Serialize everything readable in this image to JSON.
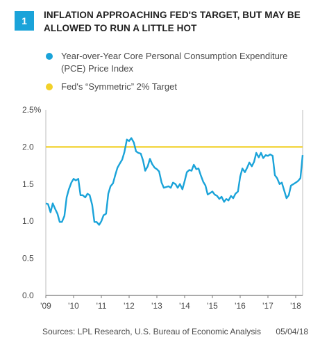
{
  "header": {
    "number": "1",
    "title": "INFLATION APPROACHING FED'S TARGET, BUT MAY BE ALLOWED TO RUN A LITTLE HOT"
  },
  "colors": {
    "accent": "#1aa3d9",
    "series": "#1aa3d9",
    "target": "#f2d12a",
    "axis": "#777777"
  },
  "legend": [
    {
      "label": "Year-over-Year Core Personal Consumption Expenditure (PCE) Price Index",
      "color": "#1aa3d9"
    },
    {
      "label": "Fed's “Symmetric” 2% Target",
      "color": "#f2d12a"
    }
  ],
  "footer": {
    "sources": "Sources: LPL Research, U.S. Bureau of Economic Analysis",
    "date": "05/04/18"
  },
  "chart_data": {
    "type": "line",
    "title": "",
    "xlabel": "",
    "ylabel": "",
    "ylim": [
      0,
      2.5
    ],
    "xlim": [
      2009.0,
      2018.25
    ],
    "y_ticks": [
      "0.0",
      "0.5",
      "1.0",
      "1.5",
      "2.0",
      "2.5%"
    ],
    "x_ticks": [
      "'09",
      "'10",
      "'11",
      "'12",
      "'13",
      "'14",
      "'15",
      "'16",
      "'17",
      "'18"
    ],
    "grid": false,
    "legend_position": "top",
    "reference_line": {
      "name": "Fed's “Symmetric” 2% Target",
      "y": 2.0
    },
    "series": [
      {
        "name": "Year-over-Year Core Personal Consumption Expenditure (PCE) Price Index",
        "x": [
          2009.0,
          2009.08,
          2009.17,
          2009.25,
          2009.33,
          2009.42,
          2009.5,
          2009.58,
          2009.67,
          2009.75,
          2009.83,
          2009.92,
          2010.0,
          2010.08,
          2010.17,
          2010.25,
          2010.33,
          2010.42,
          2010.5,
          2010.58,
          2010.67,
          2010.75,
          2010.83,
          2010.92,
          2011.0,
          2011.08,
          2011.17,
          2011.25,
          2011.33,
          2011.42,
          2011.5,
          2011.58,
          2011.67,
          2011.75,
          2011.83,
          2011.92,
          2012.0,
          2012.08,
          2012.17,
          2012.25,
          2012.33,
          2012.42,
          2012.5,
          2012.58,
          2012.67,
          2012.75,
          2012.83,
          2012.92,
          2013.0,
          2013.08,
          2013.17,
          2013.25,
          2013.33,
          2013.42,
          2013.5,
          2013.58,
          2013.67,
          2013.75,
          2013.83,
          2013.92,
          2014.0,
          2014.08,
          2014.17,
          2014.25,
          2014.33,
          2014.42,
          2014.5,
          2014.58,
          2014.67,
          2014.75,
          2014.83,
          2014.92,
          2015.0,
          2015.08,
          2015.17,
          2015.25,
          2015.33,
          2015.42,
          2015.5,
          2015.58,
          2015.67,
          2015.75,
          2015.83,
          2015.92,
          2016.0,
          2016.08,
          2016.17,
          2016.25,
          2016.33,
          2016.42,
          2016.5,
          2016.58,
          2016.67,
          2016.75,
          2016.83,
          2016.92,
          2017.0,
          2017.08,
          2017.17,
          2017.25,
          2017.33,
          2017.42,
          2017.5,
          2017.58,
          2017.67,
          2017.75,
          2017.83,
          2017.92,
          2018.0,
          2018.08,
          2018.17,
          2018.25
        ],
        "values": [
          1.24,
          1.23,
          1.12,
          1.24,
          1.17,
          1.1,
          0.99,
          0.99,
          1.07,
          1.32,
          1.43,
          1.52,
          1.57,
          1.55,
          1.57,
          1.35,
          1.35,
          1.32,
          1.37,
          1.35,
          1.22,
          0.99,
          0.99,
          0.95,
          1.0,
          1.08,
          1.1,
          1.37,
          1.47,
          1.51,
          1.62,
          1.72,
          1.78,
          1.83,
          1.93,
          2.1,
          2.08,
          2.12,
          2.06,
          1.94,
          1.92,
          1.91,
          1.82,
          1.68,
          1.74,
          1.84,
          1.77,
          1.72,
          1.7,
          1.67,
          1.52,
          1.45,
          1.46,
          1.47,
          1.45,
          1.52,
          1.5,
          1.45,
          1.5,
          1.43,
          1.54,
          1.66,
          1.69,
          1.68,
          1.76,
          1.7,
          1.71,
          1.62,
          1.53,
          1.48,
          1.36,
          1.38,
          1.4,
          1.36,
          1.34,
          1.3,
          1.33,
          1.26,
          1.3,
          1.28,
          1.34,
          1.31,
          1.37,
          1.4,
          1.6,
          1.71,
          1.66,
          1.72,
          1.79,
          1.74,
          1.8,
          1.92,
          1.86,
          1.92,
          1.85,
          1.89,
          1.88,
          1.9,
          1.88,
          1.62,
          1.58,
          1.5,
          1.52,
          1.42,
          1.31,
          1.35,
          1.48,
          1.5,
          1.52,
          1.54,
          1.58,
          1.89
        ]
      }
    ]
  }
}
